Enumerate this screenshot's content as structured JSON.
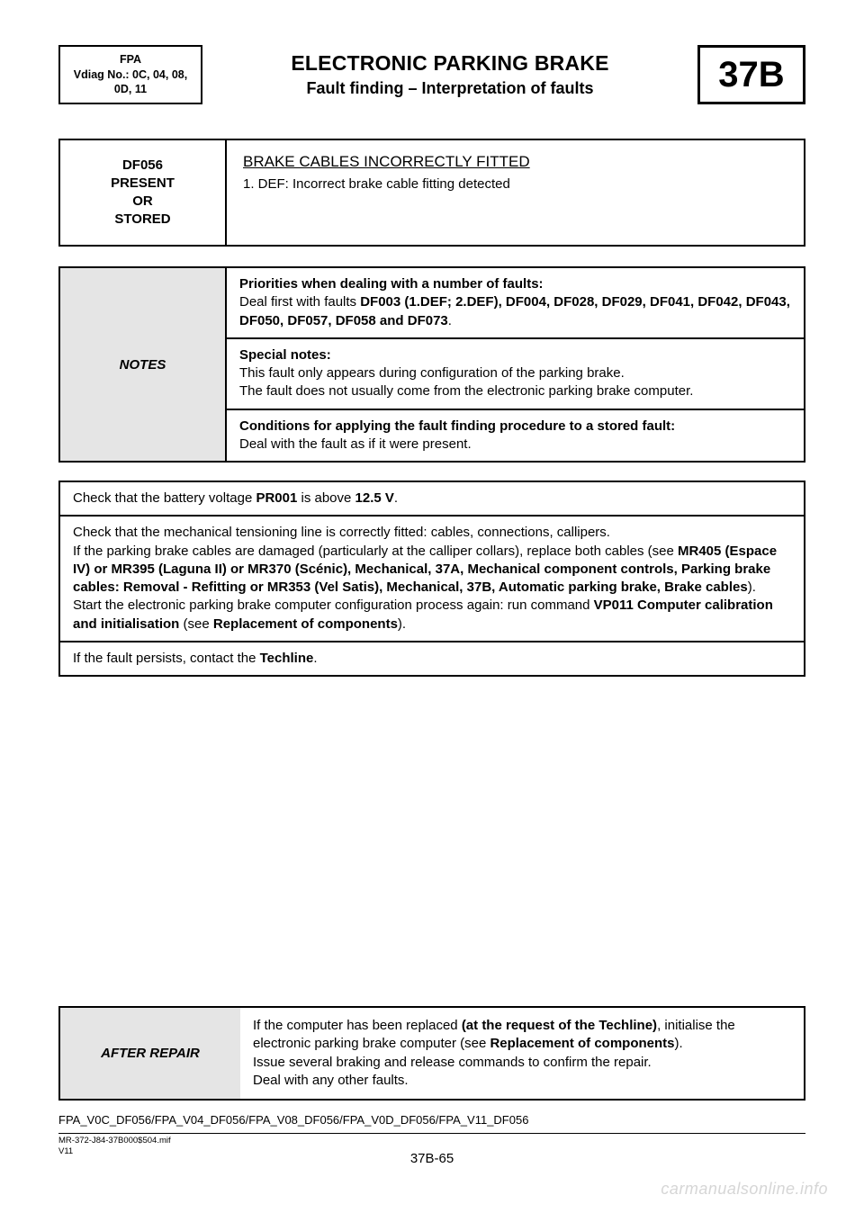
{
  "header": {
    "left_line1": "FPA",
    "left_line2": "Vdiag No.: 0C, 04, 08,",
    "left_line3": "0D, 11",
    "title": "ELECTRONIC PARKING BRAKE",
    "subtitle": "Fault finding – Interpretation of faults",
    "code": "37B"
  },
  "fault": {
    "left_l1": "DF056",
    "left_l2": "PRESENT",
    "left_l3": "OR",
    "left_l4": "STORED",
    "title": "BRAKE CABLES INCORRECTLY FITTED",
    "def": "1. DEF: Incorrect brake cable fitting detected"
  },
  "notes": {
    "label": "NOTES",
    "row1_b": "Priorities when dealing with a number of faults:",
    "row1_pre": "Deal first with faults ",
    "row1_bold2": "DF003 (1.DEF; 2.DEF), DF004, DF028, DF029, DF041, DF042, DF043, DF050, DF057, DF058 and DF073",
    "row1_post": ".",
    "row2_b": "Special notes:",
    "row2_l1": "This fault only appears during configuration of the parking brake.",
    "row2_l2": "The fault does not usually come from the electronic parking brake computer.",
    "row3_b": "Conditions for applying the fault finding procedure to a stored fault:",
    "row3_l1": "Deal with the fault as if it were present."
  },
  "proc": {
    "r1_pre": "Check that the battery voltage ",
    "r1_b1": "PR001",
    "r1_mid": " is above ",
    "r1_b2": "12.5 V",
    "r1_post": ".",
    "r2_l1": "Check that the mechanical tensioning line is correctly fitted: cables, connections, callipers.",
    "r2_l2_pre": "If the parking brake cables are damaged (particularly at the calliper collars), replace both cables (see ",
    "r2_l2_b": "MR405 (Espace IV) or MR395 (Laguna II) or MR370 (Scénic), Mechanical, 37A, Mechanical component controls, Parking brake cables: Removal - Refitting or MR353 (Vel Satis), Mechanical, 37B, Automatic parking brake, Brake cables",
    "r2_l2_post": ").",
    "r2_l3_pre": "Start the electronic parking brake computer configuration process again: run command ",
    "r2_l3_b": "VP011 Computer calibration and initialisation",
    "r2_l3_mid": " (see ",
    "r2_l3_b2": "Replacement of components",
    "r2_l3_post": ").",
    "r3_pre": "If the fault persists, contact the ",
    "r3_b": "Techline",
    "r3_post": "."
  },
  "after": {
    "label": "AFTER REPAIR",
    "l1_pre": "If the computer has been replaced ",
    "l1_b1": "(at the request of the Techline)",
    "l1_mid": ", initialise the electronic parking brake computer (see ",
    "l1_b2": "Replacement of components",
    "l1_post": ").",
    "l2": "Issue several braking and release commands to confirm the repair.",
    "l3": "Deal with any other faults."
  },
  "footer": {
    "fpa_line": "FPA_V0C_DF056/FPA_V04_DF056/FPA_V08_DF056/FPA_V0D_DF056/FPA_V11_DF056",
    "mif_l1": "MR-372-J84-37B000$504.mif",
    "mif_l2": "V11",
    "pagenum": "37B-65",
    "watermark": "carmanualsonline.info"
  },
  "colors": {
    "page_bg": "#ffffff",
    "text": "#000000",
    "grey_fill": "#e5e5e5",
    "watermark": "#d6d6d6"
  }
}
